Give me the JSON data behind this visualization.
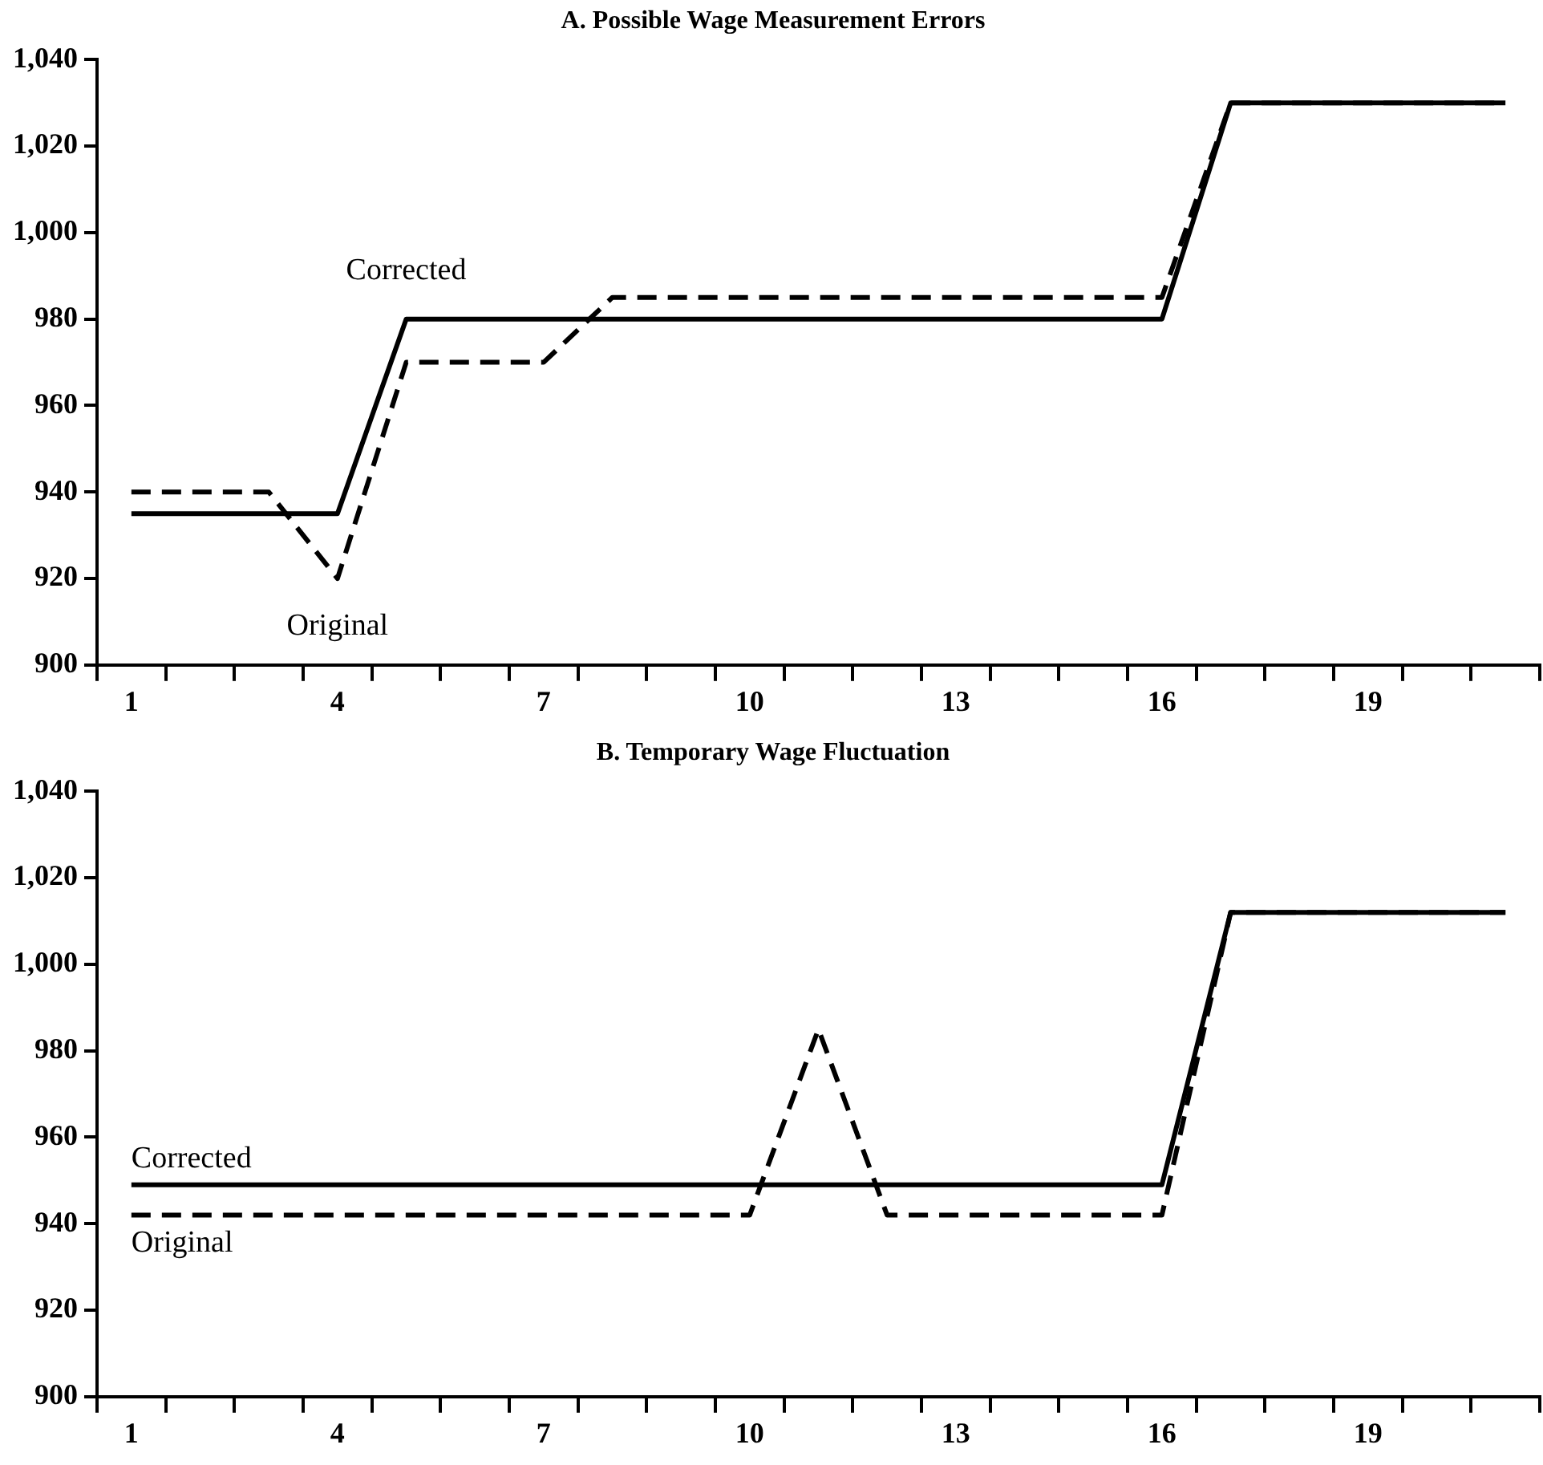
{
  "chart_data": [
    {
      "type": "line",
      "title": "A. Possible Wage Measurement Errors",
      "categories": [
        "1",
        null,
        null,
        "4",
        null,
        null,
        "7",
        null,
        null,
        "10",
        null,
        null,
        "13",
        null,
        null,
        "16",
        null,
        null,
        "19",
        null,
        null
      ],
      "series": [
        {
          "name": "Corrected",
          "color": "#000000",
          "line_style": "solid",
          "values": [
            935,
            935,
            935,
            935,
            980,
            980,
            980,
            980,
            980,
            980,
            980,
            980,
            980,
            980,
            980,
            980,
            1030,
            1030,
            1030,
            1030,
            1030
          ]
        },
        {
          "name": "Original",
          "color": "#000000",
          "line_style": "dashed",
          "values": [
            940,
            940,
            940,
            920,
            970,
            970,
            970,
            985,
            985,
            985,
            985,
            985,
            985,
            985,
            985,
            985,
            1030,
            1030,
            1030,
            1030,
            1030
          ]
        }
      ],
      "ylim": [
        900,
        1040
      ],
      "yticks": [
        900,
        920,
        940,
        960,
        980,
        {
          "value": 1000,
          "label": "1,000"
        },
        {
          "value": 1020,
          "label": "1,020"
        },
        {
          "value": 1040,
          "label": "1,040"
        }
      ],
      "grid": false,
      "legend": false,
      "marker": "none"
    },
    {
      "type": "line",
      "title": "B. Temporary Wage Fluctuation",
      "categories": [
        "1",
        null,
        null,
        "4",
        null,
        null,
        "7",
        null,
        null,
        "10",
        null,
        null,
        "13",
        null,
        null,
        "16",
        null,
        null,
        "19",
        null,
        null
      ],
      "series": [
        {
          "name": "Corrected",
          "color": "#000000",
          "line_style": "solid",
          "values": [
            949,
            949,
            949,
            949,
            949,
            949,
            949,
            949,
            949,
            949,
            949,
            949,
            949,
            949,
            949,
            949,
            1012,
            1012,
            1012,
            1012,
            1012
          ]
        },
        {
          "name": "Original",
          "color": "#000000",
          "line_style": "dashed",
          "values": [
            942,
            942,
            942,
            942,
            942,
            942,
            942,
            942,
            942,
            942,
            985,
            942,
            942,
            942,
            942,
            942,
            1012,
            1012,
            1012,
            1012,
            1012
          ]
        }
      ],
      "ylim": [
        900,
        1040
      ],
      "yticks": [
        900,
        920,
        940,
        960,
        980,
        {
          "value": 1000,
          "label": "1,000"
        },
        {
          "value": 1020,
          "label": "1,020"
        },
        {
          "value": 1040,
          "label": "1,040"
        }
      ],
      "grid": false,
      "legend": false,
      "marker": "none"
    }
  ]
}
